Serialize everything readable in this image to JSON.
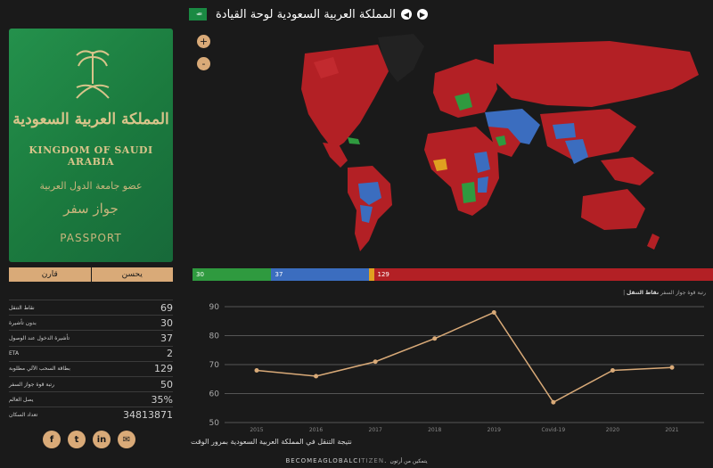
{
  "passport": {
    "arabic_title": "المملكة العربية السعودية",
    "english_title": "KINGDOM OF SAUDI ARABIA",
    "arabic_sub": "عضو جامعة الدول العربية",
    "arabic_pass": "جواز سفر",
    "passport_word": "PASSPORT"
  },
  "toggle": {
    "left": "قارن",
    "right": "يحسن"
  },
  "stats": [
    {
      "label": "نقاط التنقل",
      "value": "69"
    },
    {
      "label": "بدون تأشيرة",
      "value": "30"
    },
    {
      "label": "تأشيرة الدخول عند الوصول",
      "value": "37"
    },
    {
      "label": "ETA",
      "value": "2"
    },
    {
      "label": "بطاقة السحب الآلي مطلوبة",
      "value": "129"
    },
    {
      "label": "رتبة قوة جواز السفر",
      "value": "50"
    },
    {
      "label": "يصل العالم",
      "value": "35%"
    },
    {
      "label": "تعداد السكان",
      "value": "34813871"
    }
  ],
  "social": [
    {
      "icon": "facebook-icon",
      "glyph": "f"
    },
    {
      "icon": "twitter-icon",
      "glyph": "t"
    },
    {
      "icon": "linkedin-icon",
      "glyph": "in"
    },
    {
      "icon": "email-icon",
      "glyph": "✉"
    }
  ],
  "header": {
    "flag_text": "ﷲ",
    "title": "المملكة العربية السعودية لوحة القيادة",
    "prev": "◀",
    "next": "▶"
  },
  "map": {
    "zoom_in": "+",
    "zoom_out": "-"
  },
  "score_bar": [
    {
      "label": "30",
      "value": 30,
      "color": "#2f9a3f"
    },
    {
      "label": "37",
      "value": 37,
      "color": "#3b6dbf"
    },
    {
      "label": "",
      "value": 2,
      "color": "#e0a020"
    },
    {
      "label": "129",
      "value": 129,
      "color": "#b32025"
    }
  ],
  "legend": {
    "bold": "نقاط التنقل",
    "rest": "| رتبة قوة جواز السفر"
  },
  "chart_data": {
    "type": "line",
    "categories": [
      "2015",
      "2016",
      "2017",
      "2018",
      "2019",
      "Covid-19",
      "2020",
      "2021"
    ],
    "values": [
      68,
      66,
      71,
      79,
      88,
      57,
      68,
      69
    ],
    "ylim": [
      50,
      90
    ],
    "yticks": [
      50,
      60,
      70,
      80,
      90
    ],
    "color": "#d9aa78",
    "grid": true
  },
  "caption": "نتيجة التنقل في المملكة العربية السعودية بمرور الوقت",
  "footer": {
    "brand_a": "BECOMEAGLOBALCI",
    "brand_b": "TIZEN",
    "brand_end": ".",
    "arabic": "يتمكين من أرتون"
  }
}
